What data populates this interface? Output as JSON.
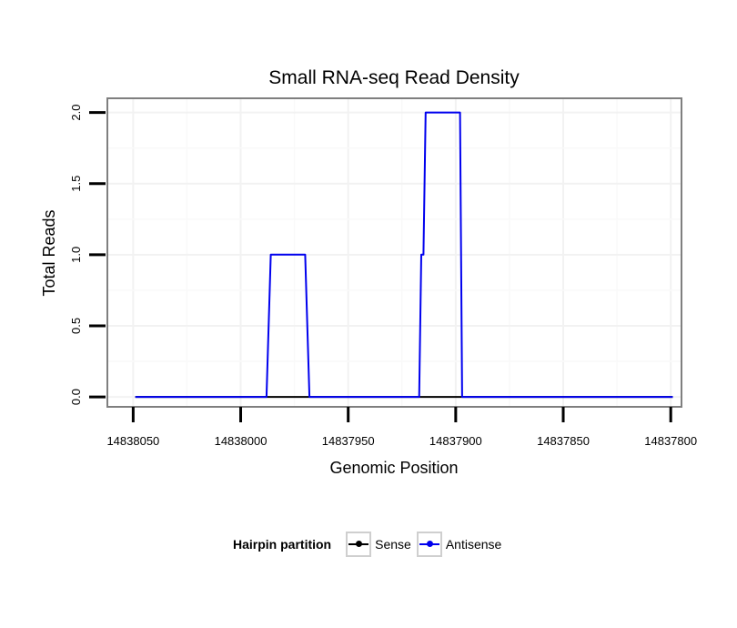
{
  "chart_data": {
    "type": "line",
    "title": "Small RNA-seq Read Density",
    "xlabel": "Genomic Position",
    "ylabel": "Total Reads",
    "x_reversed": true,
    "xlim": [
      14838062,
      14837795
    ],
    "ylim": [
      -0.07,
      2.1
    ],
    "x_ticks": [
      14838050,
      14838000,
      14837950,
      14837900,
      14837850,
      14837800
    ],
    "x_tick_labels": [
      "14838050",
      "14838000",
      "14837950",
      "14837900",
      "14837850",
      "14837800"
    ],
    "y_ticks": [
      0,
      0.5,
      1,
      1.5,
      2
    ],
    "y_tick_labels": [
      "0.0",
      "0.5",
      "1.0",
      "1.5",
      "2.0"
    ],
    "grid": true,
    "legend_position": "bottom",
    "series": [
      {
        "name": "Sense",
        "color": "#000000",
        "x": [
          14838049,
          14837799
        ],
        "y": [
          0,
          0
        ]
      },
      {
        "name": "Antisense",
        "color": "#0000ee",
        "x": [
          14838049,
          14837988,
          14837986,
          14837970,
          14837968,
          14837917,
          14837916,
          14837915,
          14837914,
          14837898,
          14837897,
          14837799
        ],
        "y": [
          0,
          0,
          1,
          1,
          0,
          0,
          1,
          1,
          2,
          2,
          0,
          0
        ]
      }
    ]
  },
  "legend": {
    "title": "Hairpin partition",
    "items": [
      {
        "label": "Sense",
        "color": "#000000"
      },
      {
        "label": "Antisense",
        "color": "#0000ee"
      }
    ]
  }
}
